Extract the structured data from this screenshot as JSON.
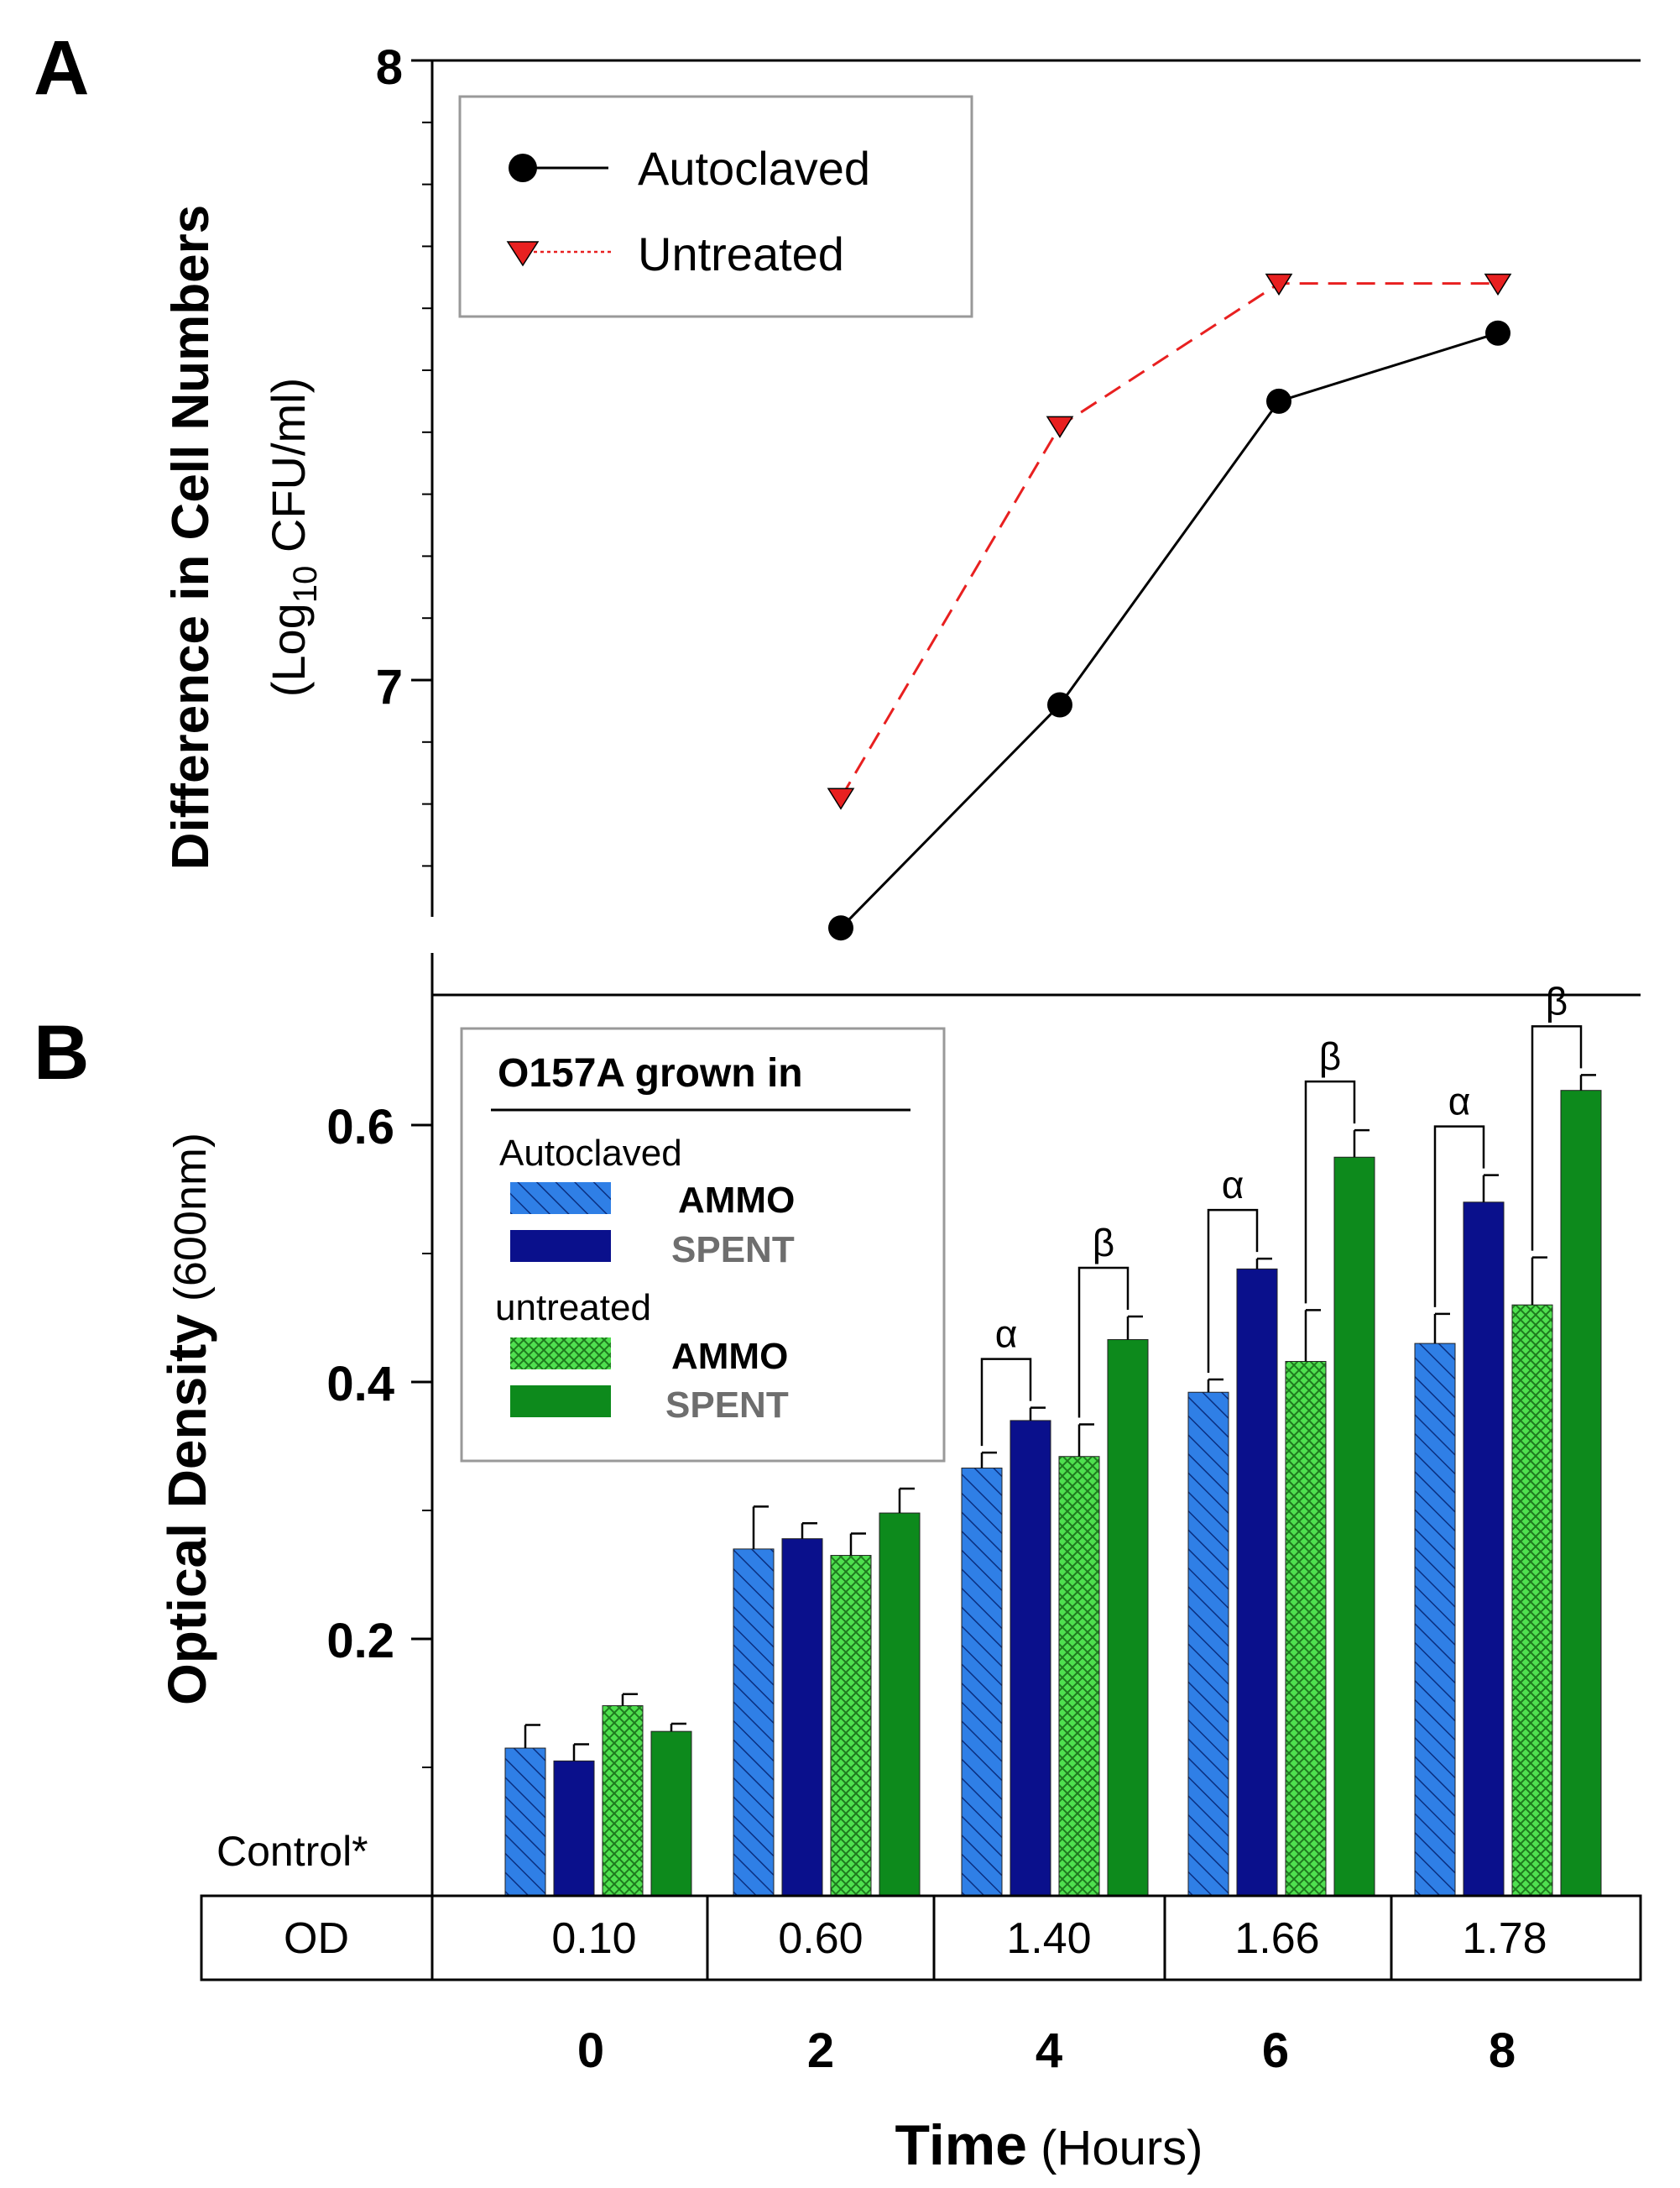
{
  "panel_labels": {
    "a": "A",
    "b": "B"
  },
  "colors": {
    "autoclaved_ammo": "#2f7fe6",
    "autoclaved_spent": "#0a108c",
    "untreated_ammo": "#4fe04f",
    "untreated_spent": "#0d8a1c",
    "untreated_line": "#e82020",
    "autoclaved_line": "#000000"
  },
  "chart_data": [
    {
      "id": "A",
      "type": "line",
      "ylabel_line1": "Difference in Cell Numbers",
      "ylabel_line2_prefix": "(Log",
      "ylabel_line2_sub": "10",
      "ylabel_line2_suffix": " CFU/ml)",
      "ylim": [
        6.6,
        8.0
      ],
      "yticks": [
        {
          "value": 7,
          "label": "7"
        },
        {
          "value": 8,
          "label": "8"
        }
      ],
      "x": [
        2,
        4,
        6,
        8
      ],
      "series": [
        {
          "name": "Autoclaved",
          "values": [
            6.6,
            6.96,
            7.45,
            7.56
          ],
          "marker": "circle",
          "color": "#000000"
        },
        {
          "name": "Untreated",
          "values": [
            6.81,
            7.41,
            7.64,
            7.64
          ],
          "marker": "triangle-down",
          "color": "#e82020"
        }
      ]
    },
    {
      "id": "B",
      "type": "bar",
      "ylabel_bold": "Optical Density",
      "ylabel_normal": " (600nm)",
      "ylim": [
        0,
        0.7
      ],
      "yticks": [
        {
          "value": 0.2,
          "label": "0.2"
        },
        {
          "value": 0.4,
          "label": "0.4"
        },
        {
          "value": 0.6,
          "label": "0.6"
        }
      ],
      "xlabel_bold": "Time",
      "xlabel_normal": " (Hours)",
      "categories": [
        "0",
        "2",
        "4",
        "6",
        "8"
      ],
      "legend": {
        "title": "O157A grown in",
        "group1": "Autoclaved",
        "group2": "untreated",
        "ammo": "AMMO",
        "spent": "SPENT"
      },
      "series": [
        {
          "name": "Autoclaved AMMO",
          "values": [
            0.115,
            0.27,
            0.333,
            0.392,
            0.43
          ],
          "errors": [
            0.018,
            0.033,
            0.012,
            0.01,
            0.023
          ]
        },
        {
          "name": "Autoclaved SPENT",
          "values": [
            0.105,
            0.278,
            0.37,
            0.488,
            0.54
          ],
          "errors": [
            0.013,
            0.012,
            0.01,
            0.008,
            0.021
          ]
        },
        {
          "name": "untreated AMMO",
          "values": [
            0.148,
            0.265,
            0.342,
            0.416,
            0.46
          ],
          "errors": [
            0.009,
            0.017,
            0.025,
            0.04,
            0.037
          ]
        },
        {
          "name": "untreated SPENT",
          "values": [
            0.128,
            0.298,
            0.433,
            0.575,
            0.627
          ],
          "errors": [
            0.006,
            0.019,
            0.018,
            0.021,
            0.012
          ]
        }
      ],
      "significance": [
        {
          "category": "4",
          "between": [
            "Autoclaved AMMO",
            "Autoclaved SPENT"
          ],
          "symbol": "α"
        },
        {
          "category": "4",
          "between": [
            "untreated AMMO",
            "untreated SPENT"
          ],
          "symbol": "β"
        },
        {
          "category": "6",
          "between": [
            "Autoclaved AMMO",
            "Autoclaved SPENT"
          ],
          "symbol": "α"
        },
        {
          "category": "6",
          "between": [
            "untreated AMMO",
            "untreated SPENT"
          ],
          "symbol": "β"
        },
        {
          "category": "8",
          "between": [
            "Autoclaved AMMO",
            "Autoclaved SPENT"
          ],
          "symbol": "α"
        },
        {
          "category": "8",
          "between": [
            "untreated AMMO",
            "untreated SPENT"
          ],
          "symbol": "β"
        }
      ],
      "control_label": "Control*",
      "od_table": {
        "header": "OD",
        "values": [
          "0.10",
          "0.60",
          "1.40",
          "1.66",
          "1.78"
        ]
      }
    }
  ]
}
